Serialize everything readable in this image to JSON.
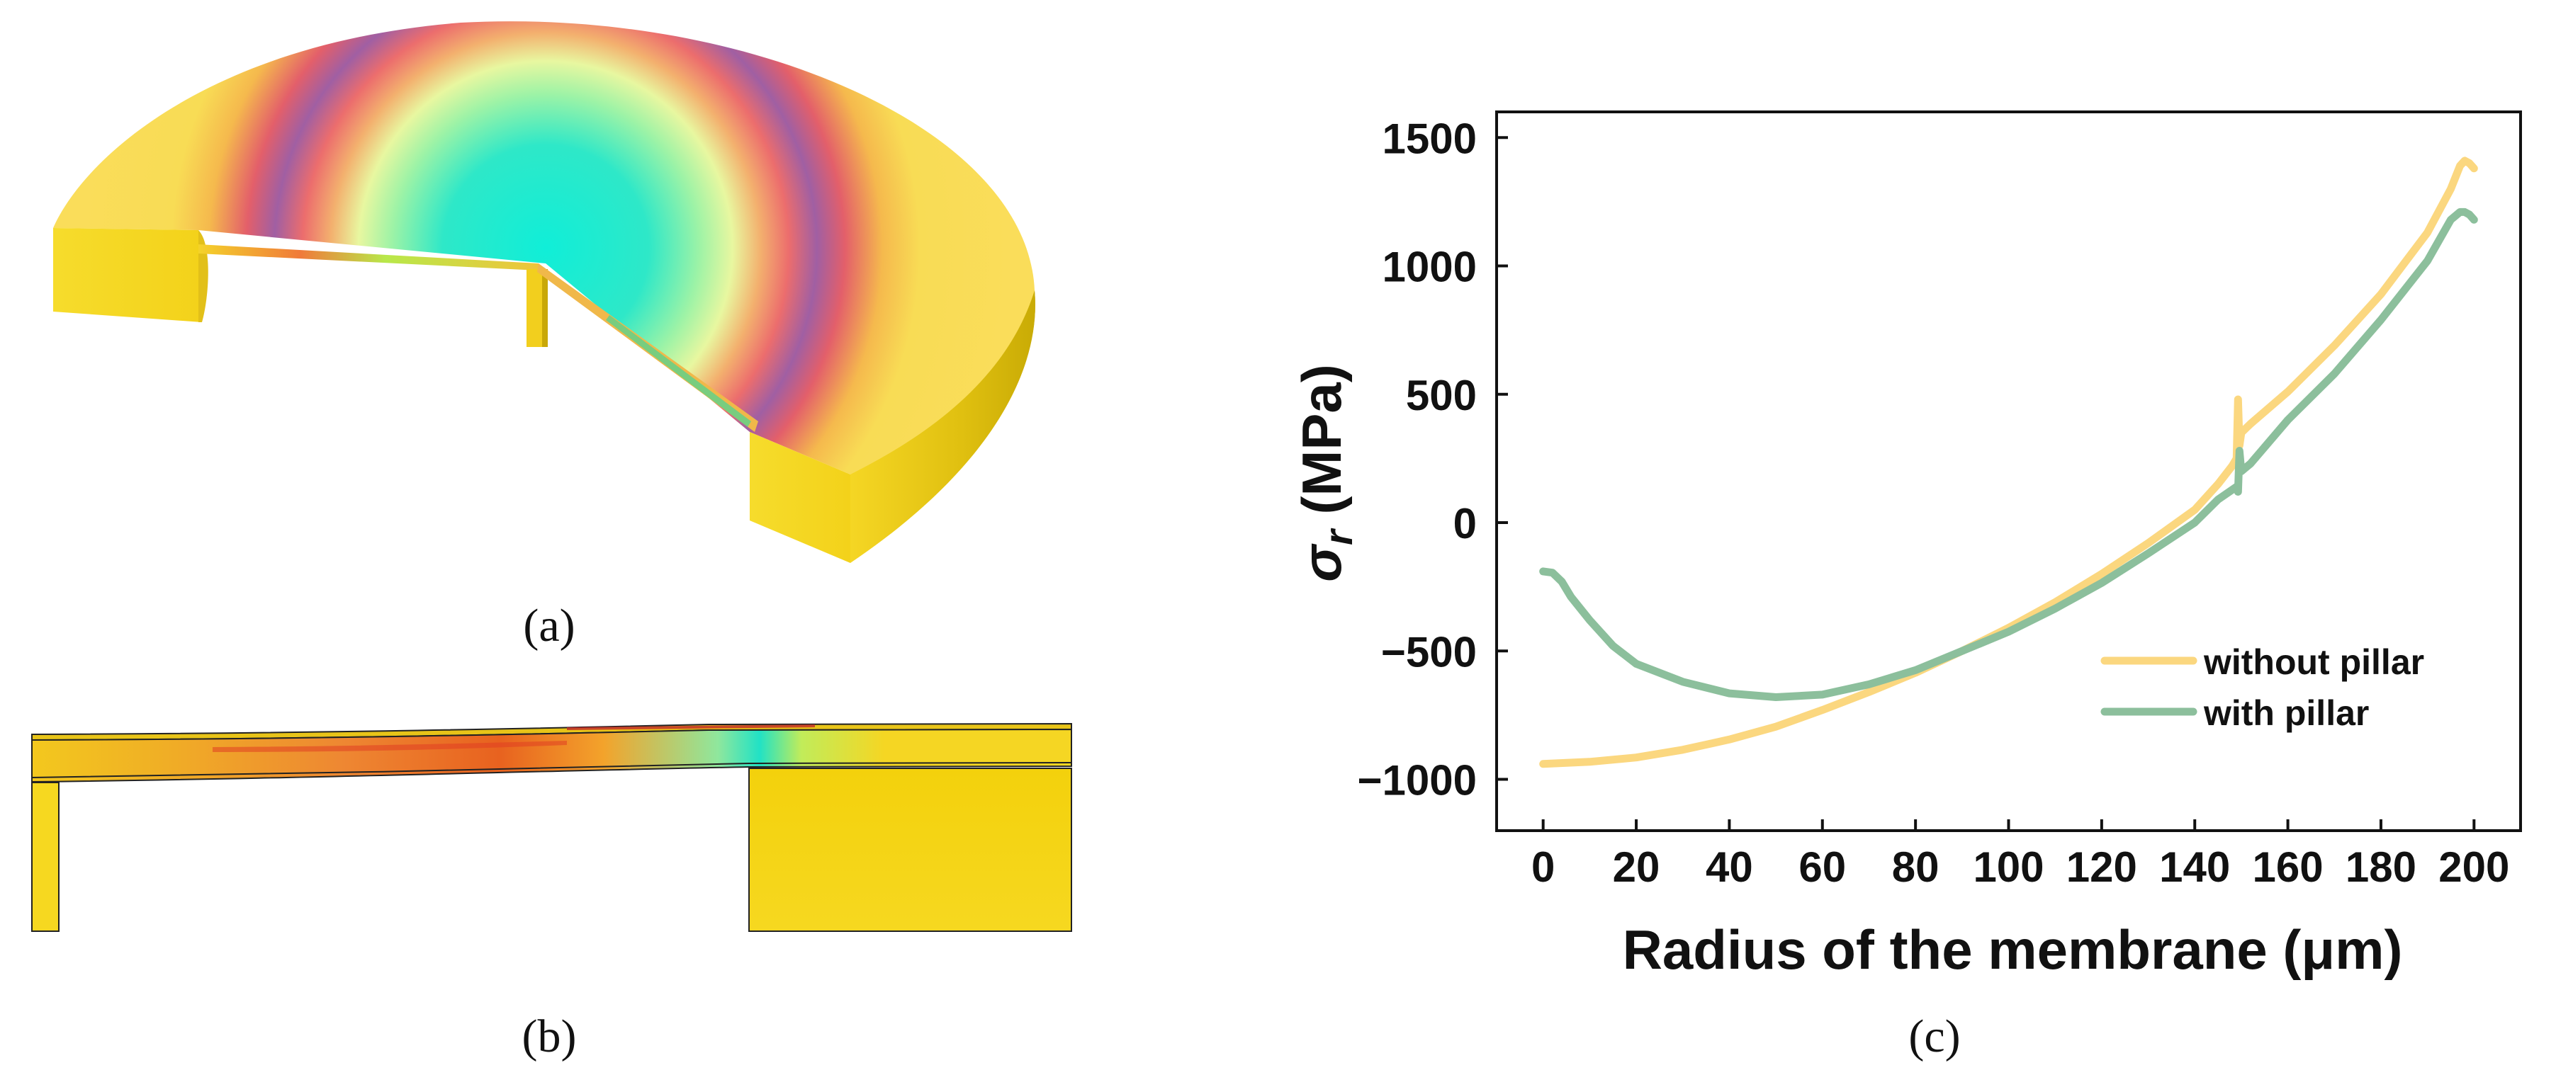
{
  "panels": {
    "a": {
      "caption": "(a)"
    },
    "b": {
      "caption": "(b)"
    },
    "c": {
      "caption": "(c)"
    }
  },
  "colors": {
    "without_pillar": "#fbd77f",
    "with_pillar": "#8cbf9c",
    "body_yellow": "#f6d728",
    "stress_cyan": "#22e8cf",
    "stress_red": "#e2575a",
    "stress_purple": "#9c5a9c"
  },
  "chart_data": {
    "type": "line",
    "xlabel": "Radius of the membrane (μm)",
    "ylabel_symbol": "σ",
    "ylabel_subscript": "r",
    "ylabel_unit": " (MPa)",
    "xlim": [
      -10,
      210
    ],
    "ylim": [
      -1200,
      1600
    ],
    "xticks": [
      0,
      20,
      40,
      60,
      80,
      100,
      120,
      140,
      160,
      180,
      200
    ],
    "yticks": [
      -1000,
      -500,
      0,
      500,
      1000,
      1500
    ],
    "ytick_labels": [
      "−1000",
      "−500",
      "0",
      "500",
      "1000",
      "1500"
    ],
    "legend_position": "lower-right",
    "grid": false,
    "series": [
      {
        "name": "without pillar",
        "color_key": "without_pillar",
        "points": [
          [
            0,
            -940
          ],
          [
            10,
            -932
          ],
          [
            20,
            -915
          ],
          [
            30,
            -885
          ],
          [
            40,
            -845
          ],
          [
            50,
            -795
          ],
          [
            60,
            -730
          ],
          [
            70,
            -660
          ],
          [
            80,
            -585
          ],
          [
            90,
            -500
          ],
          [
            100,
            -410
          ],
          [
            110,
            -310
          ],
          [
            120,
            -200
          ],
          [
            130,
            -80
          ],
          [
            140,
            50
          ],
          [
            145,
            150
          ],
          [
            148,
            220
          ],
          [
            149,
            250
          ],
          [
            149.3,
            480
          ],
          [
            149.6,
            300
          ],
          [
            150,
            350
          ],
          [
            152,
            385
          ],
          [
            160,
            510
          ],
          [
            170,
            690
          ],
          [
            180,
            890
          ],
          [
            190,
            1130
          ],
          [
            195,
            1300
          ],
          [
            197,
            1390
          ],
          [
            198,
            1410
          ],
          [
            199,
            1400
          ],
          [
            200,
            1380
          ]
        ]
      },
      {
        "name": "with pillar",
        "color_key": "with_pillar",
        "points": [
          [
            0,
            -190
          ],
          [
            2,
            -195
          ],
          [
            4,
            -230
          ],
          [
            6,
            -290
          ],
          [
            10,
            -380
          ],
          [
            15,
            -480
          ],
          [
            20,
            -550
          ],
          [
            30,
            -620
          ],
          [
            40,
            -665
          ],
          [
            50,
            -680
          ],
          [
            60,
            -670
          ],
          [
            70,
            -630
          ],
          [
            80,
            -575
          ],
          [
            90,
            -500
          ],
          [
            100,
            -425
          ],
          [
            110,
            -335
          ],
          [
            120,
            -235
          ],
          [
            130,
            -120
          ],
          [
            140,
            0
          ],
          [
            145,
            90
          ],
          [
            149,
            140
          ],
          [
            149.3,
            120
          ],
          [
            149.6,
            280
          ],
          [
            150,
            200
          ],
          [
            152,
            230
          ],
          [
            160,
            400
          ],
          [
            170,
            580
          ],
          [
            180,
            790
          ],
          [
            190,
            1020
          ],
          [
            195,
            1180
          ],
          [
            197,
            1210
          ],
          [
            198,
            1210
          ],
          [
            199,
            1200
          ],
          [
            200,
            1180
          ]
        ]
      }
    ]
  }
}
